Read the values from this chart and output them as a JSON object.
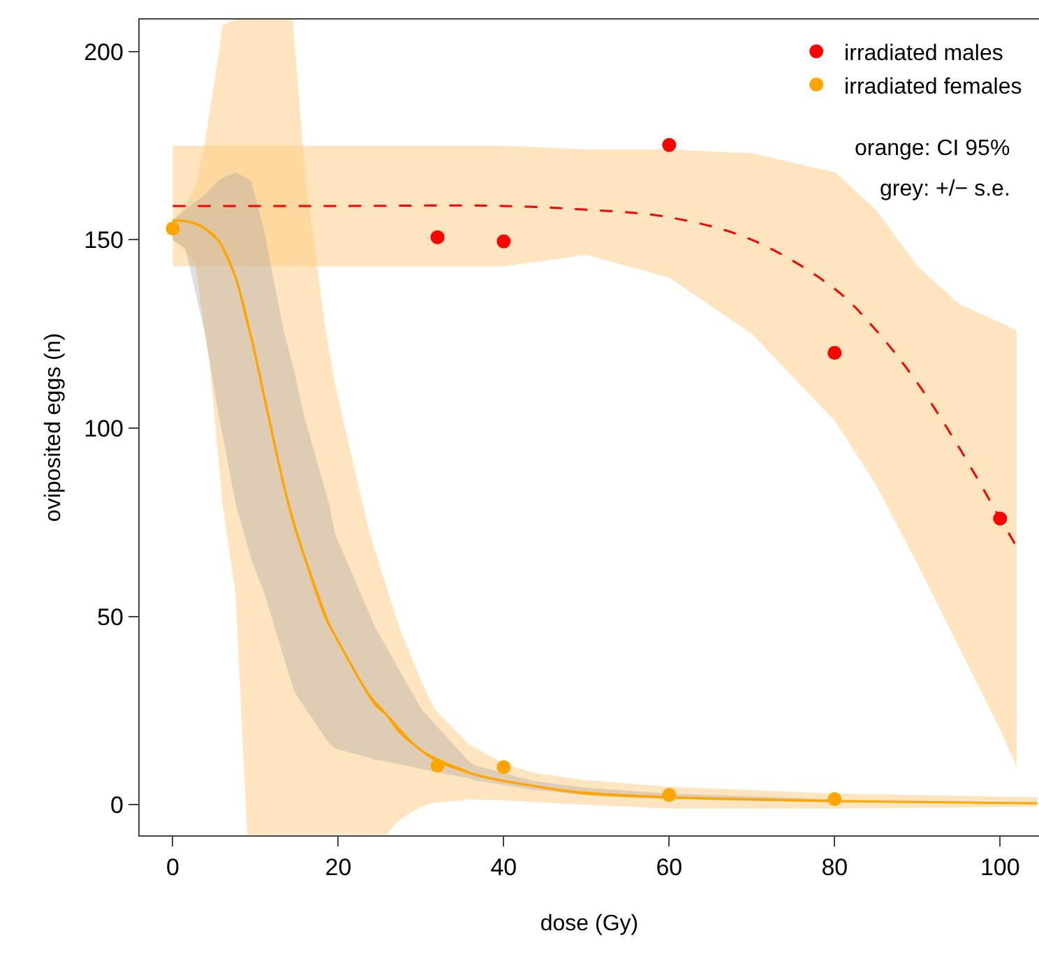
{
  "chart_data": {
    "type": "scatter",
    "xlabel": "dose (Gy)",
    "ylabel": "oviposited eggs (n)",
    "xlim": [
      -4,
      104.7
    ],
    "ylim": [
      -8.1,
      208.5
    ],
    "xticks": [
      0,
      20,
      40,
      60,
      80,
      100
    ],
    "yticks": [
      0,
      50,
      100,
      150,
      200
    ],
    "legend": "top right",
    "annotations": [
      "orange: CI 95%",
      "grey: +/− s.e."
    ],
    "series": [
      {
        "type": "line",
        "color": "#ff0000",
        "line_style": "dashed",
        "marker": "none",
        "x": [
          0,
          20,
          40,
          50,
          60,
          70,
          80,
          85,
          90,
          95,
          100,
          102
        ],
        "values": [
          159,
          159,
          159,
          158,
          156,
          150,
          137,
          126,
          112,
          95,
          76,
          68.5
        ],
        "lower": [
          143,
          143,
          143,
          146,
          140,
          125,
          102,
          85,
          64,
          42,
          20,
          10
        ],
        "upper": [
          175,
          175,
          175,
          174,
          174,
          173,
          168,
          158,
          143,
          133,
          128,
          126
        ]
      },
      {
        "type": "line",
        "color": "#ffa500",
        "line_style": "solid",
        "marker": "none",
        "x": [
          0,
          1.5,
          2.7,
          3.9,
          4.4,
          5.6,
          6,
          7.6,
          9,
          9.5,
          11.1,
          13.3,
          14.5,
          15.9,
          16.2,
          18.4,
          19.6,
          20.6,
          23.8,
          25.8,
          27.4,
          30,
          31.6,
          35.8,
          40,
          43.6,
          50,
          60,
          80,
          104.5
        ],
        "values": [
          155.2,
          155,
          154.4,
          153,
          152,
          149.6,
          148,
          140,
          128,
          124,
          108,
          86,
          76,
          66,
          64,
          50,
          45,
          41,
          29,
          24,
          19.3,
          14.5,
          12,
          8.5,
          6.3,
          5,
          3,
          2,
          1,
          0.4
        ],
        "lower": [
          150,
          147,
          144,
          125,
          118,
          90,
          80,
          56,
          -8,
          -8,
          -8,
          -8,
          -8,
          -8,
          -8,
          -8,
          -8,
          -8,
          -8,
          -8,
          -4,
          -0.5,
          0.5,
          1.4,
          1.2,
          0.7,
          0,
          -1,
          -1,
          -0.5
        ],
        "upper": [
          155,
          159,
          164,
          176,
          183,
          200,
          207,
          208.5,
          208.5,
          208.5,
          208.5,
          208.5,
          208.5,
          170,
          164,
          127,
          112,
          102,
          72,
          58,
          47,
          33,
          25.5,
          16,
          11,
          8.5,
          6.5,
          4.8,
          3,
          2
        ]
      },
      {
        "type": "line",
        "color": "#ffa500",
        "line_style": "solid",
        "marker": "none",
        "x": [
          0,
          1.5,
          3.9,
          5.6,
          7.6,
          9.5,
          11.1,
          13.3,
          14.7,
          15.9,
          18.9,
          19.6,
          24.5,
          25.8,
          30,
          35.8,
          36.5,
          43.6,
          50,
          60,
          80
        ],
        "values": [
          155.2,
          155,
          153,
          149.6,
          140,
          124,
          108,
          86,
          74,
          66,
          48,
          45,
          26.5,
          24,
          14.5,
          8.6,
          8,
          5,
          3.2,
          2,
          1
        ],
        "lower": [
          150,
          148,
          125,
          103,
          80,
          65,
          56,
          40,
          30,
          26,
          16.3,
          15,
          12,
          11.5,
          9.5,
          7,
          6.5,
          4,
          2.5,
          1.5,
          0.7
        ],
        "upper": [
          155,
          158,
          162,
          166,
          168,
          165.6,
          152,
          127,
          115,
          103,
          80,
          72,
          47,
          42,
          25.5,
          11.5,
          10.5,
          6.3,
          4.5,
          3,
          1.5
        ]
      },
      {
        "name": "irradiated males",
        "color": "#ff0000",
        "marker": "circle",
        "x": [
          32,
          40,
          60,
          80,
          100
        ],
        "values": [
          150.7,
          149.6,
          175.2,
          120,
          76
        ]
      },
      {
        "name": "irradiated females",
        "color": "#ffa500",
        "marker": "circle",
        "x": [
          0,
          32,
          40,
          60,
          80
        ],
        "values": [
          153,
          10.4,
          10,
          2.6,
          1.5
        ]
      }
    ]
  }
}
